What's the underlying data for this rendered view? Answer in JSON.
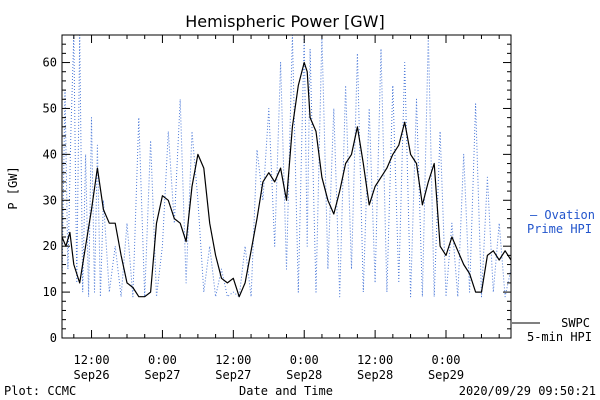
{
  "chart_data": {
    "type": "line",
    "title": "Hemispheric Power [GW]",
    "ylabel": "P [GW]",
    "xlabel": "Date and Time",
    "ylim": [
      0,
      66
    ],
    "xlim": [
      "2020-09-26T07:00",
      "2020-09-29T11:00"
    ],
    "yticks": [
      0,
      10,
      20,
      30,
      40,
      50,
      60
    ],
    "xtick_labels": [
      {
        "time": "2020-09-26T12:00",
        "line1": "12:00",
        "line2": "Sep26"
      },
      {
        "time": "2020-09-27T00:00",
        "line1": "0:00",
        "line2": "Sep27"
      },
      {
        "time": "2020-09-27T12:00",
        "line1": "12:00",
        "line2": "Sep27"
      },
      {
        "time": "2020-09-28T00:00",
        "line1": "0:00",
        "line2": "Sep28"
      },
      {
        "time": "2020-09-28T12:00",
        "line1": "12:00",
        "line2": "Sep28"
      },
      {
        "time": "2020-09-29T00:00",
        "line1": "0:00",
        "line2": "Sep29"
      }
    ],
    "series": [
      {
        "name": "SWPC 5-min HPI",
        "style": "solid",
        "color": "#000000",
        "points": [
          [
            "2020-09-26T07:00",
            22
          ],
          [
            "2020-09-26T07:40",
            20
          ],
          [
            "2020-09-26T08:20",
            23
          ],
          [
            "2020-09-26T09:00",
            16
          ],
          [
            "2020-09-26T10:00",
            12
          ],
          [
            "2020-09-26T11:00",
            20
          ],
          [
            "2020-09-26T12:00",
            28
          ],
          [
            "2020-09-26T13:00",
            37
          ],
          [
            "2020-09-26T14:00",
            28
          ],
          [
            "2020-09-26T15:00",
            25
          ],
          [
            "2020-09-26T16:00",
            25
          ],
          [
            "2020-09-26T17:00",
            18
          ],
          [
            "2020-09-26T18:00",
            12
          ],
          [
            "2020-09-26T19:00",
            11
          ],
          [
            "2020-09-26T20:00",
            9
          ],
          [
            "2020-09-26T21:00",
            9
          ],
          [
            "2020-09-26T22:00",
            10
          ],
          [
            "2020-09-26T23:00",
            25
          ],
          [
            "2020-09-27T00:00",
            31
          ],
          [
            "2020-09-27T01:00",
            30
          ],
          [
            "2020-09-27T02:00",
            26
          ],
          [
            "2020-09-27T03:00",
            25
          ],
          [
            "2020-09-27T04:00",
            21
          ],
          [
            "2020-09-27T05:00",
            33
          ],
          [
            "2020-09-27T06:00",
            40
          ],
          [
            "2020-09-27T07:00",
            37
          ],
          [
            "2020-09-27T08:00",
            25
          ],
          [
            "2020-09-27T09:00",
            18
          ],
          [
            "2020-09-27T10:00",
            13
          ],
          [
            "2020-09-27T11:00",
            12
          ],
          [
            "2020-09-27T12:00",
            13
          ],
          [
            "2020-09-27T13:00",
            9
          ],
          [
            "2020-09-27T14:00",
            12
          ],
          [
            "2020-09-27T15:00",
            19
          ],
          [
            "2020-09-27T16:00",
            26
          ],
          [
            "2020-09-27T17:00",
            34
          ],
          [
            "2020-09-27T18:00",
            36
          ],
          [
            "2020-09-27T19:00",
            34
          ],
          [
            "2020-09-27T20:00",
            37
          ],
          [
            "2020-09-27T21:00",
            30
          ],
          [
            "2020-09-27T22:00",
            46
          ],
          [
            "2020-09-27T23:00",
            55
          ],
          [
            "2020-09-28T00:00",
            60
          ],
          [
            "2020-09-28T00:30",
            58
          ],
          [
            "2020-09-28T01:00",
            48
          ],
          [
            "2020-09-28T02:00",
            45
          ],
          [
            "2020-09-28T03:00",
            35
          ],
          [
            "2020-09-28T04:00",
            30
          ],
          [
            "2020-09-28T05:00",
            27
          ],
          [
            "2020-09-28T06:00",
            32
          ],
          [
            "2020-09-28T07:00",
            38
          ],
          [
            "2020-09-28T08:00",
            40
          ],
          [
            "2020-09-28T09:00",
            46
          ],
          [
            "2020-09-28T10:00",
            38
          ],
          [
            "2020-09-28T11:00",
            29
          ],
          [
            "2020-09-28T12:00",
            33
          ],
          [
            "2020-09-28T13:00",
            35
          ],
          [
            "2020-09-28T14:00",
            37
          ],
          [
            "2020-09-28T15:00",
            40
          ],
          [
            "2020-09-28T16:00",
            42
          ],
          [
            "2020-09-28T17:00",
            47
          ],
          [
            "2020-09-28T18:00",
            40
          ],
          [
            "2020-09-28T19:00",
            38
          ],
          [
            "2020-09-28T20:00",
            29
          ],
          [
            "2020-09-28T21:00",
            34
          ],
          [
            "2020-09-28T22:00",
            38
          ],
          [
            "2020-09-28T23:00",
            20
          ],
          [
            "2020-09-29T00:00",
            18
          ],
          [
            "2020-09-29T01:00",
            22
          ],
          [
            "2020-09-29T02:00",
            19
          ],
          [
            "2020-09-29T03:00",
            16
          ],
          [
            "2020-09-29T04:00",
            14
          ],
          [
            "2020-09-29T05:00",
            10
          ],
          [
            "2020-09-29T06:00",
            10
          ],
          [
            "2020-09-29T07:00",
            18
          ],
          [
            "2020-09-29T08:00",
            19
          ],
          [
            "2020-09-29T09:00",
            17
          ],
          [
            "2020-09-29T10:00",
            19
          ],
          [
            "2020-09-29T11:00",
            17
          ]
        ]
      },
      {
        "name": "Ovation Prime HPI",
        "style": "dotted",
        "color": "#4a78d8",
        "points": [
          [
            "2020-09-26T07:00",
            12
          ],
          [
            "2020-09-26T07:30",
            54
          ],
          [
            "2020-09-26T08:00",
            15
          ],
          [
            "2020-09-26T08:30",
            45
          ],
          [
            "2020-09-26T09:00",
            66
          ],
          [
            "2020-09-26T09:30",
            12
          ],
          [
            "2020-09-26T10:00",
            66
          ],
          [
            "2020-09-26T10:30",
            10
          ],
          [
            "2020-09-26T11:00",
            40
          ],
          [
            "2020-09-26T11:30",
            9
          ],
          [
            "2020-09-26T12:00",
            48
          ],
          [
            "2020-09-26T12:30",
            10
          ],
          [
            "2020-09-26T13:00",
            42
          ],
          [
            "2020-09-26T13:30",
            9
          ],
          [
            "2020-09-26T14:00",
            30
          ],
          [
            "2020-09-26T15:00",
            10
          ],
          [
            "2020-09-26T16:00",
            20
          ],
          [
            "2020-09-26T17:00",
            9
          ],
          [
            "2020-09-26T18:00",
            25
          ],
          [
            "2020-09-26T19:00",
            9
          ],
          [
            "2020-09-26T20:00",
            48
          ],
          [
            "2020-09-26T21:00",
            9
          ],
          [
            "2020-09-26T22:00",
            43
          ],
          [
            "2020-09-26T23:00",
            9
          ],
          [
            "2020-09-27T00:00",
            20
          ],
          [
            "2020-09-27T01:00",
            45
          ],
          [
            "2020-09-27T02:00",
            25
          ],
          [
            "2020-09-27T03:00",
            52
          ],
          [
            "2020-09-27T04:00",
            12
          ],
          [
            "2020-09-27T05:00",
            45
          ],
          [
            "2020-09-27T06:00",
            30
          ],
          [
            "2020-09-27T07:00",
            10
          ],
          [
            "2020-09-27T08:00",
            20
          ],
          [
            "2020-09-27T09:00",
            9
          ],
          [
            "2020-09-27T10:00",
            15
          ],
          [
            "2020-09-27T11:00",
            9
          ],
          [
            "2020-09-27T12:00",
            10
          ],
          [
            "2020-09-27T13:00",
            9
          ],
          [
            "2020-09-27T14:00",
            20
          ],
          [
            "2020-09-27T15:00",
            9
          ],
          [
            "2020-09-27T16:00",
            41
          ],
          [
            "2020-09-27T17:00",
            30
          ],
          [
            "2020-09-27T18:00",
            50
          ],
          [
            "2020-09-27T19:00",
            20
          ],
          [
            "2020-09-27T20:00",
            60
          ],
          [
            "2020-09-27T21:00",
            15
          ],
          [
            "2020-09-27T22:00",
            66
          ],
          [
            "2020-09-27T23:00",
            10
          ],
          [
            "2020-09-28T00:00",
            66
          ],
          [
            "2020-09-28T00:30",
            20
          ],
          [
            "2020-09-28T01:00",
            63
          ],
          [
            "2020-09-28T02:00",
            10
          ],
          [
            "2020-09-28T03:00",
            66
          ],
          [
            "2020-09-28T04:00",
            15
          ],
          [
            "2020-09-28T05:00",
            50
          ],
          [
            "2020-09-28T06:00",
            9
          ],
          [
            "2020-09-28T07:00",
            55
          ],
          [
            "2020-09-28T08:00",
            15
          ],
          [
            "2020-09-28T09:00",
            62
          ],
          [
            "2020-09-28T10:00",
            10
          ],
          [
            "2020-09-28T11:00",
            50
          ],
          [
            "2020-09-28T12:00",
            12
          ],
          [
            "2020-09-28T13:00",
            63
          ],
          [
            "2020-09-28T14:00",
            10
          ],
          [
            "2020-09-28T15:00",
            55
          ],
          [
            "2020-09-28T16:00",
            12
          ],
          [
            "2020-09-28T17:00",
            60
          ],
          [
            "2020-09-28T18:00",
            9
          ],
          [
            "2020-09-28T19:00",
            52
          ],
          [
            "2020-09-28T20:00",
            9
          ],
          [
            "2020-09-28T21:00",
            66
          ],
          [
            "2020-09-28T22:00",
            9
          ],
          [
            "2020-09-28T23:00",
            45
          ],
          [
            "2020-09-29T00:00",
            9
          ],
          [
            "2020-09-29T01:00",
            25
          ],
          [
            "2020-09-29T02:00",
            9
          ],
          [
            "2020-09-29T03:00",
            40
          ],
          [
            "2020-09-29T04:00",
            10
          ],
          [
            "2020-09-29T05:00",
            51
          ],
          [
            "2020-09-29T06:00",
            9
          ],
          [
            "2020-09-29T07:00",
            35
          ],
          [
            "2020-09-29T08:00",
            10
          ],
          [
            "2020-09-29T09:00",
            25
          ],
          [
            "2020-09-29T10:00",
            9
          ],
          [
            "2020-09-29T11:00",
            15
          ]
        ]
      }
    ],
    "legend": [
      {
        "series": "Ovation Prime HPI",
        "lines": [
          "— Ovation",
          "Prime HPI"
        ],
        "color": "#2255cc",
        "placement": "right"
      },
      {
        "series": "SWPC 5-min HPI",
        "lines": [
          "SWPC",
          "5-min HPI"
        ],
        "color": "#000000",
        "placement": "right"
      }
    ],
    "grid": false
  },
  "footer": {
    "plot_credit": "Plot: CCMC",
    "timestamp": "2020/09/29 09:50:21"
  }
}
